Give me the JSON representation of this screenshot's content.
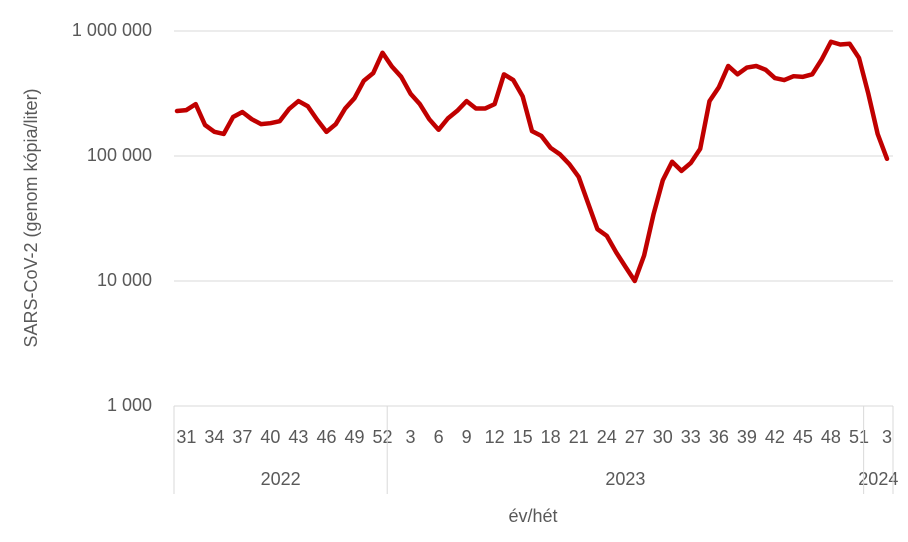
{
  "chart_data": {
    "type": "line",
    "y_label": "SARS-CoV-2 (genom kópia/liter)",
    "x_label": "év/hét",
    "log_y": true,
    "grid": true,
    "ylim": [
      1000,
      1000000
    ],
    "yticks": [
      {
        "value": 1000,
        "label": "1 000"
      },
      {
        "value": 10000,
        "label": "10 000"
      },
      {
        "value": 100000,
        "label": "100 000"
      },
      {
        "value": 1000000,
        "label": "1 000 000"
      }
    ],
    "groups": [
      {
        "label": "2022",
        "categories": [
          null,
          "31",
          null,
          null,
          "34",
          null,
          null,
          "37",
          null,
          null,
          "40",
          null,
          null,
          "43",
          null,
          null,
          "46",
          null,
          null,
          "49",
          null,
          null,
          "52"
        ]
      },
      {
        "label": "2023",
        "categories": [
          null,
          null,
          "3",
          null,
          null,
          "6",
          null,
          null,
          "9",
          null,
          null,
          "12",
          null,
          null,
          "15",
          null,
          null,
          "18",
          null,
          null,
          "21",
          null,
          null,
          "24",
          null,
          null,
          "27",
          null,
          null,
          "30",
          null,
          null,
          "33",
          null,
          null,
          "36",
          null,
          null,
          "39",
          null,
          null,
          "42",
          null,
          null,
          "45",
          null,
          null,
          "48",
          null,
          null,
          "51"
        ]
      },
      {
        "label": "2024",
        "categories": [
          null,
          null,
          "3"
        ]
      }
    ],
    "series": [
      {
        "name": "SARS-CoV-2",
        "color": "#c00000",
        "values": [
          229000,
          233000,
          260000,
          177000,
          156000,
          150000,
          205000,
          225000,
          197000,
          180000,
          183000,
          190000,
          238000,
          275000,
          250000,
          195000,
          156000,
          180000,
          240000,
          290000,
          400000,
          460000,
          670000,
          520000,
          430000,
          315000,
          260000,
          197000,
          162000,
          200000,
          230000,
          275000,
          240000,
          240000,
          260000,
          450000,
          405000,
          300000,
          158000,
          145000,
          116000,
          103000,
          86000,
          68000,
          42000,
          26000,
          23000,
          17000,
          13000,
          10000,
          16000,
          34000,
          64000,
          90000,
          76000,
          88000,
          114000,
          275000,
          355000,
          525000,
          450000,
          510000,
          525000,
          490000,
          420000,
          405000,
          435000,
          430000,
          450000,
          590000,
          820000,
          780000,
          790000,
          610000,
          315000,
          150000,
          95000
        ]
      }
    ]
  }
}
